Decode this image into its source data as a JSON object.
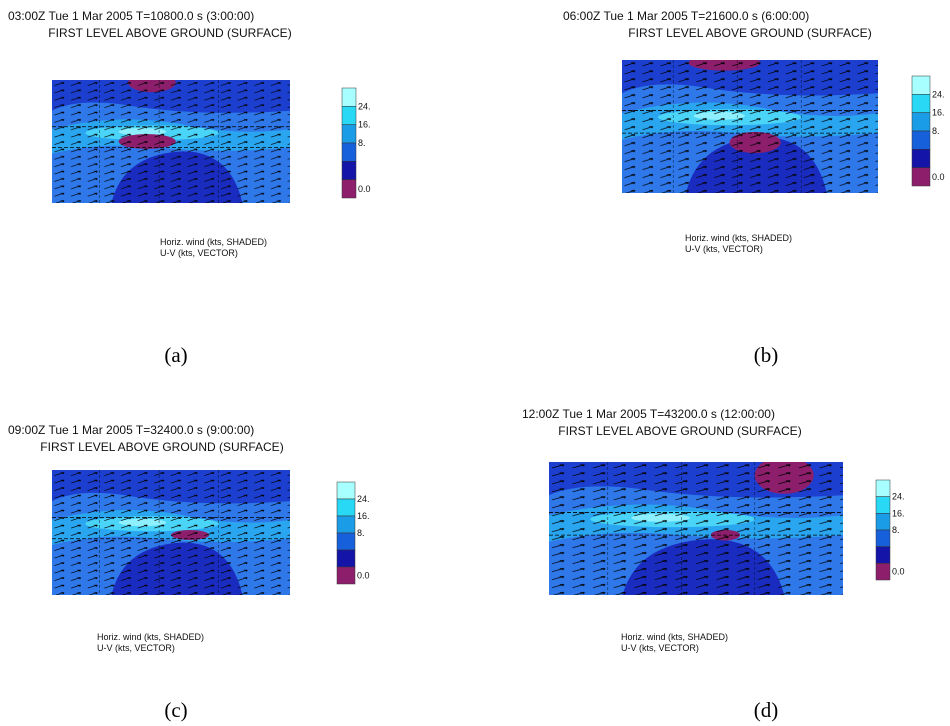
{
  "panels": [
    {
      "time_line": "03:00Z Tue  1 Mar 2005     T=10800.0 s (3:00:00)",
      "level_line": "FIRST LEVEL ABOVE GROUND (SURFACE)",
      "colorbar_labels": [
        "24.",
        "16.",
        "8.",
        "0.0"
      ],
      "caption": [
        "Horiz. wind (kts, SHADED)",
        "U-V (kts, VECTOR)"
      ],
      "label": "(a)"
    },
    {
      "time_line": "06:00Z Tue  1 Mar 2005     T=21600.0 s (6:00:00)",
      "level_line": "FIRST LEVEL ABOVE GROUND (SURFACE)",
      "colorbar_labels": [
        "24.",
        "16.",
        "8.",
        "0.0"
      ],
      "caption": [
        "Horiz. wind (kts, SHADED)",
        "U-V (kts, VECTOR)"
      ],
      "label": "(b)"
    },
    {
      "time_line": "09:00Z Tue  1 Mar 2005     T=32400.0 s (9:00:00)",
      "level_line": "FIRST LEVEL ABOVE GROUND (SURFACE)",
      "colorbar_labels": [
        "24.",
        "16.",
        "8.",
        "0.0"
      ],
      "caption": [
        "Horiz. wind (kts, SHADED)",
        "U-V (kts, VECTOR)"
      ],
      "label": "(c)"
    },
    {
      "time_line": "12:00Z Tue  1 Mar 2005     T=43200.0 s (12:00:00)",
      "level_line": "FIRST LEVEL ABOVE GROUND (SURFACE)",
      "colorbar_labels": [
        "24.",
        "16.",
        "8.",
        "0.0"
      ],
      "caption": [
        "Horiz. wind (kts, SHADED)",
        "U-V (kts, VECTOR)"
      ],
      "label": "(d)"
    }
  ]
}
